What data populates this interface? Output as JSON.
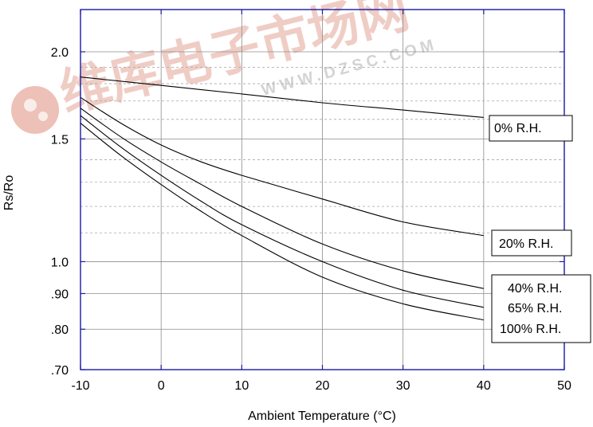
{
  "watermark": {
    "cn": "维库电子市场网",
    "url": "WWW.DZSC.COM",
    "colors": {
      "red": "#e8b2a6",
      "grey": "#d9d9d9"
    }
  },
  "chart_data": {
    "type": "line",
    "xlabel": "Ambient Temperature (°C)",
    "ylabel": "Rs/Ro",
    "xlim": [
      -10,
      50
    ],
    "ylim": [
      0.7,
      2.2
    ],
    "y_scale": "log",
    "grid": true,
    "x_ticks": [
      {
        "value": -10,
        "label": "-10"
      },
      {
        "value": 0,
        "label": "0"
      },
      {
        "value": 10,
        "label": "10"
      },
      {
        "value": 20,
        "label": "20"
      },
      {
        "value": 30,
        "label": "30"
      },
      {
        "value": 40,
        "label": "40"
      },
      {
        "value": 50,
        "label": "50"
      }
    ],
    "y_ticks": [
      {
        "value": 0.7,
        "label": ".70"
      },
      {
        "value": 0.8,
        "label": ".80"
      },
      {
        "value": 0.9,
        "label": ".90"
      },
      {
        "value": 1.0,
        "label": "1.0"
      },
      {
        "value": 1.5,
        "label": "1.5"
      },
      {
        "value": 2.0,
        "label": "2.0"
      }
    ],
    "y_minor_grid": [
      1.1,
      1.2,
      1.3,
      1.4,
      1.6,
      1.7,
      1.8,
      1.9
    ],
    "series": [
      {
        "name": "0% R.H.",
        "boxed": true,
        "x": [
          -10,
          0,
          10,
          20,
          30,
          40
        ],
        "y": [
          1.84,
          1.79,
          1.74,
          1.69,
          1.65,
          1.61
        ]
      },
      {
        "name": "20% R.H.",
        "boxed": true,
        "x": [
          -10,
          -5,
          0,
          5,
          10,
          20,
          30,
          40
        ],
        "y": [
          1.72,
          1.58,
          1.47,
          1.39,
          1.33,
          1.23,
          1.14,
          1.09
        ]
      },
      {
        "name": "40% R.H.",
        "boxed": false,
        "x": [
          -10,
          -5,
          0,
          5,
          10,
          20,
          30,
          40
        ],
        "y": [
          1.66,
          1.51,
          1.39,
          1.29,
          1.2,
          1.06,
          0.97,
          0.915
        ]
      },
      {
        "name": "65% R.H.",
        "boxed": false,
        "x": [
          -10,
          -5,
          0,
          5,
          10,
          20,
          30,
          40
        ],
        "y": [
          1.62,
          1.46,
          1.33,
          1.22,
          1.13,
          1.0,
          0.91,
          0.86
        ]
      },
      {
        "name": "100% R.H.",
        "boxed": false,
        "x": [
          -10,
          -5,
          0,
          5,
          10,
          20,
          30,
          40
        ],
        "y": [
          1.58,
          1.42,
          1.29,
          1.18,
          1.09,
          0.95,
          0.87,
          0.825
        ]
      }
    ]
  }
}
